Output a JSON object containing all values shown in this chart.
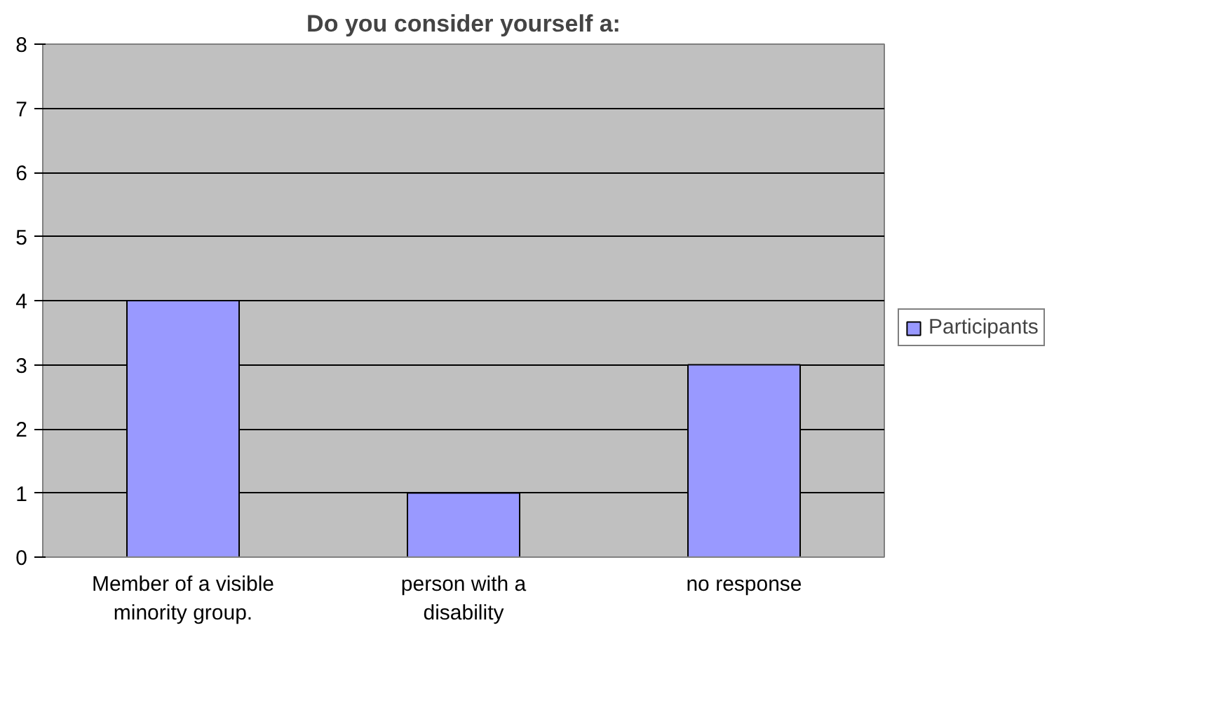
{
  "chart_data": {
    "type": "bar",
    "title": "Do you consider yourself a:",
    "categories": [
      "Member of a visible minority group.",
      "person with a disability",
      "no response"
    ],
    "series": [
      {
        "name": "Participants",
        "color": "#9999ff",
        "values": [
          4,
          1,
          3
        ]
      }
    ],
    "ylim": [
      0,
      8
    ],
    "yticks": [
      0,
      1,
      2,
      3,
      4,
      5,
      6,
      7,
      8
    ],
    "grid": "y",
    "legend": "right"
  }
}
